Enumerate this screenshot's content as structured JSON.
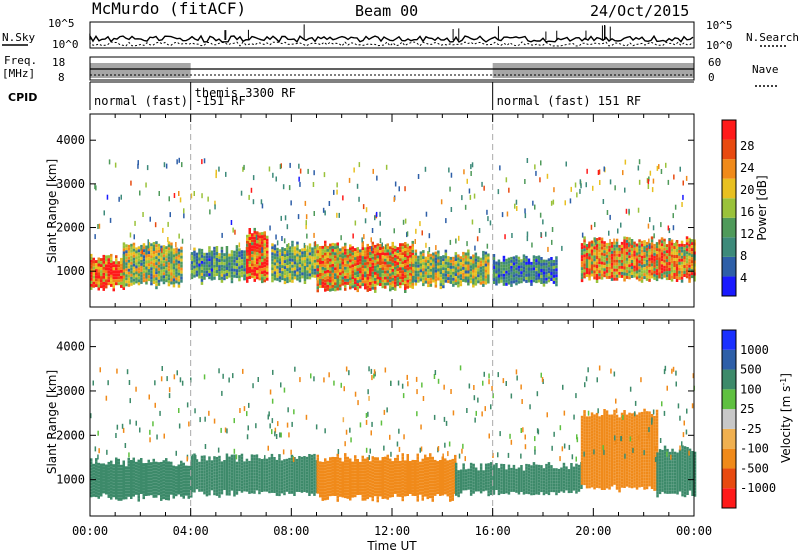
{
  "header": {
    "station": "McMurdo (fitACF)",
    "beam": "Beam 00",
    "date": "24/Oct/2015"
  },
  "top_panels": {
    "nsky_label": "N.Sky",
    "nsearch_label": "N.Search",
    "freq_label": "Freq.",
    "freq_unit": "[MHz]",
    "cpid_label": "CPID",
    "nave_label": "Nave",
    "noise_ticks_left": [
      "10^5",
      "10^0"
    ],
    "noise_ticks_right": [
      "10^5",
      "10^0"
    ],
    "freq_ticks": [
      "18",
      "8"
    ],
    "nave_ticks": [
      "60",
      "0"
    ]
  },
  "cpid": [
    {
      "start_hour": 0,
      "end_hour": 4,
      "label": "normal (fast) -151 RF"
    },
    {
      "start_hour": 4,
      "end_hour": 16,
      "label": "themis 3300 RF"
    },
    {
      "start_hour": 16,
      "end_hour": 24,
      "label": "normal (fast) 151 RF"
    }
  ],
  "chart_data": [
    {
      "type": "heatmap",
      "title": "",
      "xlabel": "Time UT",
      "ylabel": "Slant Range [km]",
      "xlim": [
        0,
        24
      ],
      "ylim": [
        180,
        4600
      ],
      "yticks": [
        "1000",
        "2000",
        "3000",
        "4000"
      ],
      "colorbar": {
        "label": "Power [dB]",
        "ticks": [
          "4",
          "8",
          "12",
          "16",
          "20",
          "24",
          "28"
        ],
        "colors": [
          "#1a1aff",
          "#2e5fa8",
          "#3d8a7a",
          "#4f9a5a",
          "#9ac23a",
          "#e8c020",
          "#f08a1a",
          "#e84a10",
          "#ff1a1a"
        ]
      },
      "regions": [
        {
          "t_start": 0.0,
          "t_end": 1.3,
          "r_start": 700,
          "r_end": 1200,
          "level": 26
        },
        {
          "t_start": 1.3,
          "t_end": 3.6,
          "r_start": 800,
          "r_end": 1500,
          "level": 14
        },
        {
          "t_start": 4.0,
          "t_end": 6.2,
          "r_start": 900,
          "r_end": 1400,
          "level": 10
        },
        {
          "t_start": 6.2,
          "t_end": 7.0,
          "r_start": 900,
          "r_end": 1800,
          "level": 24
        },
        {
          "t_start": 7.2,
          "t_end": 9.0,
          "r_start": 900,
          "r_end": 1500,
          "level": 12
        },
        {
          "t_start": 9.0,
          "t_end": 12.8,
          "r_start": 700,
          "r_end": 1500,
          "level": 20
        },
        {
          "t_start": 12.8,
          "t_end": 15.8,
          "r_start": 800,
          "r_end": 1300,
          "level": 14
        },
        {
          "t_start": 16.0,
          "t_end": 18.5,
          "r_start": 800,
          "r_end": 1200,
          "level": 8
        },
        {
          "t_start": 19.5,
          "t_end": 24.0,
          "r_start": 900,
          "r_end": 1600,
          "level": 20
        }
      ]
    },
    {
      "type": "heatmap",
      "title": "",
      "xlabel": "Time UT",
      "ylabel": "Slant Range [km]",
      "xlim": [
        0,
        24
      ],
      "ylim": [
        180,
        4600
      ],
      "xticks": [
        "00:00",
        "04:00",
        "08:00",
        "12:00",
        "16:00",
        "20:00",
        "00:00"
      ],
      "yticks": [
        "1000",
        "2000",
        "3000",
        "4000"
      ],
      "colorbar": {
        "label": "Velocity [m s^-1]",
        "ticks": [
          "1000",
          "500",
          "100",
          "25",
          "-25",
          "-100",
          "-500",
          "-1000"
        ],
        "colors": [
          "#1a30ff",
          "#2e5fa8",
          "#3d8a6a",
          "#5fc040",
          "#c8c8c8",
          "#f0b050",
          "#f08a1a",
          "#e84a10",
          "#ff1a1a"
        ]
      },
      "regions": [
        {
          "t_start": 0.0,
          "t_end": 4.0,
          "r_start": 700,
          "r_end": 1300,
          "level": 200
        },
        {
          "t_start": 4.0,
          "t_end": 9.0,
          "r_start": 800,
          "r_end": 1400,
          "level": 200
        },
        {
          "t_start": 9.0,
          "t_end": 14.5,
          "r_start": 700,
          "r_end": 1400,
          "level": -300
        },
        {
          "t_start": 14.5,
          "t_end": 16.0,
          "r_start": 800,
          "r_end": 1200,
          "level": 200
        },
        {
          "t_start": 16.0,
          "t_end": 19.5,
          "r_start": 800,
          "r_end": 1200,
          "level": 200
        },
        {
          "t_start": 19.5,
          "t_end": 22.5,
          "r_start": 900,
          "r_end": 2400,
          "level": -300
        },
        {
          "t_start": 22.5,
          "t_end": 24.0,
          "r_start": 800,
          "r_end": 1600,
          "level": 200
        }
      ]
    }
  ]
}
